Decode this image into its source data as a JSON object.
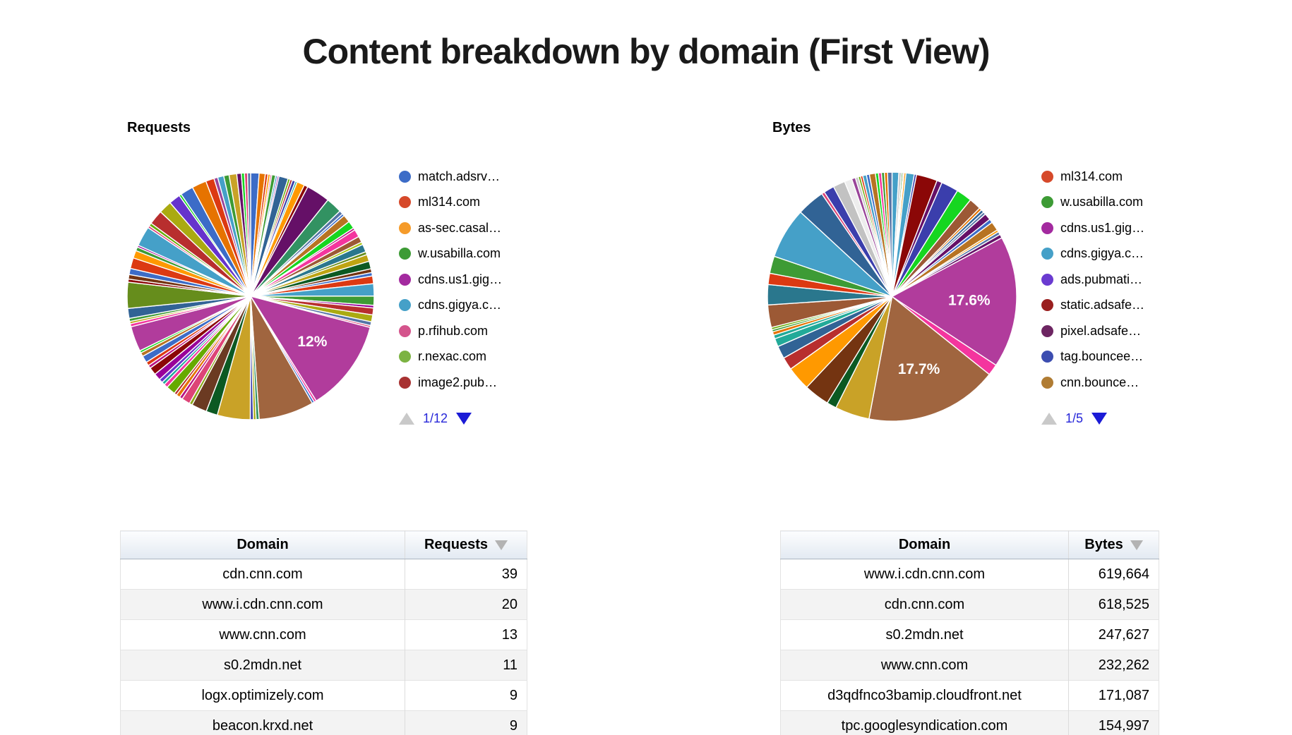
{
  "page": {
    "title": "Content breakdown by domain (First View)"
  },
  "ui_colors": {
    "pagination_active": "#1b1bd6",
    "pagination_text": "#2626d9",
    "pagination_disabled": "#c9c9c9",
    "sort_arrow": "#b3b3b3",
    "table_row_alt": "#f3f3f3",
    "pie_label_text": "#ffffff"
  },
  "chart_data": [
    {
      "id": "requests_pie",
      "type": "pie",
      "title": "Requests",
      "legend_position": "right",
      "legend_page": "1/12",
      "labeled_values": [
        "12%"
      ],
      "legend_visible": [
        {
          "label": "match.adsrv…",
          "color": "#3c6cc7"
        },
        {
          "label": "ml314.com",
          "color": "#d6492a"
        },
        {
          "label": "as-sec.casal…",
          "color": "#f59b2a"
        },
        {
          "label": "w.usabilla.com",
          "color": "#3d9b35"
        },
        {
          "label": "cdns.us1.gig…",
          "color": "#a32a9f"
        },
        {
          "label": "cdns.gigya.c…",
          "color": "#45a0c8"
        },
        {
          "label": "p.rfihub.com",
          "color": "#d4548c"
        },
        {
          "label": "r.nexac.com",
          "color": "#7cb342"
        },
        {
          "label": "image2.pub…",
          "color": "#a83232"
        }
      ],
      "slices": [
        [
          "#3c6cc7",
          1.1
        ],
        [
          "#e67300",
          0.8
        ],
        [
          "#dc3912",
          0.35
        ],
        [
          "#ff9900",
          0.3
        ],
        [
          "#dd4477",
          0.2
        ],
        [
          "#3d9b35",
          0.5
        ],
        [
          "#45a0c8",
          0.25
        ],
        [
          "#990099",
          0.2
        ],
        [
          "#316395",
          1.2
        ],
        [
          "#66aa00",
          0.3
        ],
        [
          "#b82e2e",
          0.3
        ],
        [
          "#3b3eac",
          0.4
        ],
        [
          "#22aa99",
          0.25
        ],
        [
          "#ff9900",
          1.0
        ],
        [
          "#8b0707",
          0.5
        ],
        [
          "#651067",
          3.1
        ],
        [
          "#329262",
          2.1
        ],
        [
          "#5574a6",
          0.5
        ],
        [
          "#3c6cc7",
          0.3
        ],
        [
          "#b77322",
          1.0
        ],
        [
          "#16d620",
          1.0
        ],
        [
          "#b91383",
          0.3
        ],
        [
          "#f4359e",
          1.0
        ],
        [
          "#9c5935",
          0.8
        ],
        [
          "#a9c413",
          0.35
        ],
        [
          "#2a778d",
          1.0
        ],
        [
          "#668d1c",
          0.4
        ],
        [
          "#bea413",
          0.9
        ],
        [
          "#0c5922",
          1.0
        ],
        [
          "#743411",
          0.5
        ],
        [
          "#3c6cc7",
          0.45
        ],
        [
          "#dc3912",
          1.0
        ],
        [
          "#45a0c8",
          1.6
        ],
        [
          "#3d9b35",
          1.2
        ],
        [
          "#990099",
          0.35
        ],
        [
          "#b82e2e",
          0.9
        ],
        [
          "#aaaa11",
          0.9
        ],
        [
          "#5574a6",
          0.5
        ],
        [
          "#dd4477",
          0.25
        ],
        [
          "#b13c9c",
          12.0,
          "12%"
        ],
        [
          "#f4359e",
          0.3
        ],
        [
          "#3c6cc7",
          0.3
        ],
        [
          "#a0653f",
          7.2
        ],
        [
          "#329262",
          0.4
        ],
        [
          "#aaaa11",
          0.35
        ],
        [
          "#3b3eac",
          0.4
        ],
        [
          "#c9a227",
          4.3
        ],
        [
          "#0c5922",
          1.5
        ],
        [
          "#6b3a22",
          2.0
        ],
        [
          "#8aa717",
          0.4
        ],
        [
          "#dd4477",
          1.1
        ],
        [
          "#b91383",
          0.4
        ],
        [
          "#e67300",
          0.5
        ],
        [
          "#b82e2e",
          0.35
        ],
        [
          "#66aa00",
          1.2
        ],
        [
          "#f4359e",
          0.5
        ],
        [
          "#22aa99",
          0.4
        ],
        [
          "#6633cc",
          0.5
        ],
        [
          "#990099",
          0.9
        ],
        [
          "#8b0707",
          1.0
        ],
        [
          "#b91383",
          0.4
        ],
        [
          "#dc3912",
          0.5
        ],
        [
          "#3c6cc7",
          0.9
        ],
        [
          "#b77322",
          0.5
        ],
        [
          "#16d620",
          0.3
        ],
        [
          "#b13c9c",
          3.3
        ],
        [
          "#f4359e",
          0.4
        ],
        [
          "#bea413",
          0.3
        ],
        [
          "#3d9b35",
          0.4
        ],
        [
          "#316395",
          1.3
        ],
        [
          "#668d1c",
          3.4
        ],
        [
          "#8b0707",
          0.4
        ],
        [
          "#743411",
          0.6
        ],
        [
          "#3c6cc7",
          0.8
        ],
        [
          "#dc3912",
          1.4
        ],
        [
          "#ff9900",
          1.0
        ],
        [
          "#3d9b35",
          0.5
        ],
        [
          "#990099",
          0.25
        ],
        [
          "#45a0c8",
          2.6
        ],
        [
          "#dd4477",
          0.3
        ],
        [
          "#66aa00",
          0.4
        ],
        [
          "#b82e2e",
          1.9
        ],
        [
          "#aaaa11",
          1.7
        ],
        [
          "#6633cc",
          1.5
        ],
        [
          "#16d620",
          0.3
        ],
        [
          "#3c6cc7",
          1.7
        ],
        [
          "#e67300",
          1.9
        ],
        [
          "#dc3912",
          1.1
        ],
        [
          "#994499",
          0.5
        ],
        [
          "#45a0c8",
          0.8
        ],
        [
          "#3d9b35",
          0.7
        ],
        [
          "#c9a227",
          1.0
        ],
        [
          "#651067",
          0.6
        ],
        [
          "#16d620",
          0.4
        ],
        [
          "#dd4477",
          0.4
        ],
        [
          "#5574a6",
          0.4
        ]
      ]
    },
    {
      "id": "bytes_pie",
      "type": "pie",
      "title": "Bytes",
      "legend_position": "right",
      "legend_page": "1/5",
      "labeled_values": [
        "17.6%",
        "17.7%"
      ],
      "legend_visible": [
        {
          "label": "ml314.com",
          "color": "#d6492a"
        },
        {
          "label": "w.usabilla.com",
          "color": "#3d9b35"
        },
        {
          "label": "cdns.us1.gig…",
          "color": "#a32a9f"
        },
        {
          "label": "cdns.gigya.c…",
          "color": "#45a0c8"
        },
        {
          "label": "ads.pubmati…",
          "color": "#6a3bd0"
        },
        {
          "label": "static.adsafe…",
          "color": "#9a1f1f"
        },
        {
          "label": "pixel.adsafe…",
          "color": "#6d2562"
        },
        {
          "label": "tag.bouncee…",
          "color": "#3c4db0"
        },
        {
          "label": "cnn.bounce…",
          "color": "#b07c33"
        }
      ],
      "slices": [
        [
          "#45a0c8",
          0.9
        ],
        [
          "#cccccc",
          0.35
        ],
        [
          "#3d9b35",
          0.2
        ],
        [
          "#dc3912",
          0.15
        ],
        [
          "#ff9900",
          0.25
        ],
        [
          "#45a0c8",
          1.1
        ],
        [
          "#3b3eac",
          0.3
        ],
        [
          "#8b0707",
          2.8
        ],
        [
          "#651067",
          0.7
        ],
        [
          "#3b3eac",
          2.3
        ],
        [
          "#16d620",
          2.1
        ],
        [
          "#9c5935",
          1.6
        ],
        [
          "#e67300",
          0.35
        ],
        [
          "#316395",
          0.4
        ],
        [
          "#5574a6",
          0.35
        ],
        [
          "#651067",
          0.9
        ],
        [
          "#3c6cc7",
          0.5
        ],
        [
          "#b77322",
          1.2
        ],
        [
          "#ff9900",
          0.3
        ],
        [
          "#5574a6",
          0.4
        ],
        [
          "#651067",
          0.5
        ],
        [
          "#b13c9c",
          17.6,
          "17.6%"
        ],
        [
          "#f4359e",
          1.5
        ],
        [
          "#a0653f",
          17.7,
          "17.7%"
        ],
        [
          "#c9a227",
          4.6
        ],
        [
          "#0c5922",
          1.3
        ],
        [
          "#743411",
          3.4
        ],
        [
          "#ff9900",
          3.2
        ],
        [
          "#b82e2e",
          1.7
        ],
        [
          "#316395",
          1.7
        ],
        [
          "#22aa99",
          1.1
        ],
        [
          "#22aa99",
          0.5
        ],
        [
          "#e67300",
          0.45
        ],
        [
          "#3d9b35",
          0.3
        ],
        [
          "#66aa00",
          0.3
        ],
        [
          "#9c5935",
          3.0
        ],
        [
          "#2a778d",
          2.7
        ],
        [
          "#dc3912",
          1.5
        ],
        [
          "#3d9b35",
          2.3
        ],
        [
          "#45a0c8",
          6.8
        ],
        [
          "#316395",
          3.7
        ],
        [
          "#dd4477",
          0.4
        ],
        [
          "#3b3eac",
          1.4
        ],
        [
          "#c2c2c2",
          1.6
        ],
        [
          "#ededed",
          1.0
        ],
        [
          "#994499",
          0.5
        ],
        [
          "#cccccc",
          0.4
        ],
        [
          "#66aa00",
          0.3
        ],
        [
          "#dc3912",
          0.3
        ],
        [
          "#45a0c8",
          0.5
        ],
        [
          "#3c6cc7",
          0.4
        ],
        [
          "#b77322",
          0.8
        ],
        [
          "#16d620",
          0.4
        ],
        [
          "#f4359e",
          0.4
        ],
        [
          "#3d9b35",
          0.4
        ],
        [
          "#e67300",
          0.4
        ],
        [
          "#5574a6",
          0.6
        ]
      ]
    },
    {
      "id": "requests_table",
      "type": "table",
      "columns": [
        "Domain",
        "Requests"
      ],
      "sort": {
        "column": "Requests",
        "direction": "desc"
      },
      "rows": [
        [
          "cdn.cnn.com",
          "39"
        ],
        [
          "www.i.cdn.cnn.com",
          "20"
        ],
        [
          "www.cnn.com",
          "13"
        ],
        [
          "s0.2mdn.net",
          "11"
        ],
        [
          "logx.optimizely.com",
          "9"
        ],
        [
          "beacon.krxd.net",
          "9"
        ]
      ]
    },
    {
      "id": "bytes_table",
      "type": "table",
      "columns": [
        "Domain",
        "Bytes"
      ],
      "sort": {
        "column": "Bytes",
        "direction": "desc"
      },
      "rows": [
        [
          "www.i.cdn.cnn.com",
          "619,664"
        ],
        [
          "cdn.cnn.com",
          "618,525"
        ],
        [
          "s0.2mdn.net",
          "247,627"
        ],
        [
          "www.cnn.com",
          "232,262"
        ],
        [
          "d3qdfnco3bamip.cloudfront.net",
          "171,087"
        ],
        [
          "tpc.googlesyndication.com",
          "154,997"
        ]
      ]
    }
  ]
}
